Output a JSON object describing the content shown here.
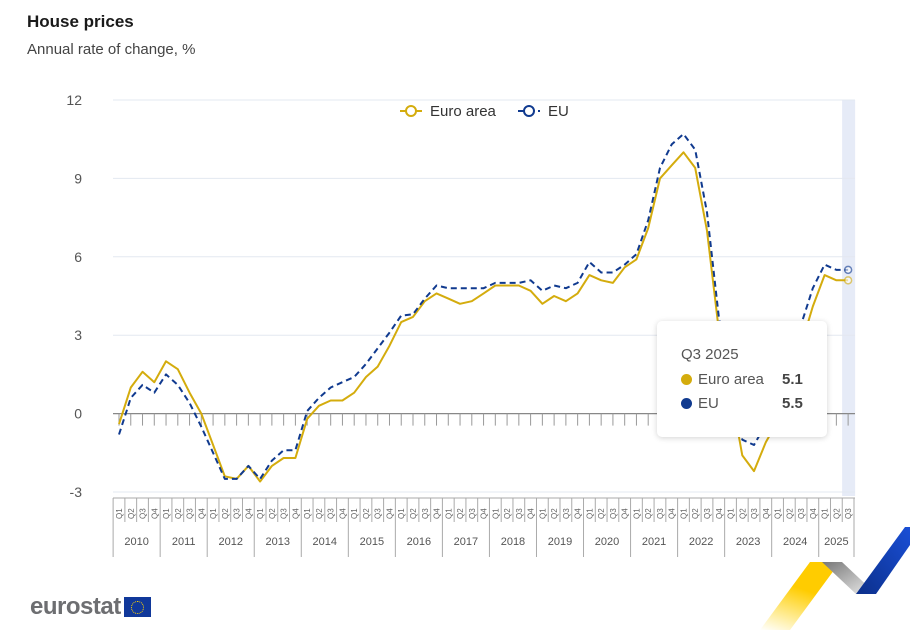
{
  "header": {
    "title": "House prices",
    "subtitle": "Annual rate of change, %"
  },
  "chart_data": {
    "type": "line",
    "title": "House prices",
    "subtitle": "Annual rate of change, %",
    "ylim": [
      -3,
      12
    ],
    "yticks": [
      -3,
      0,
      3,
      6,
      9,
      12
    ],
    "grid": true,
    "legend_placement": "top-center",
    "quarters": [
      "Q1",
      "Q2",
      "Q3",
      "Q4"
    ],
    "years": [
      "2010",
      "2011",
      "2012",
      "2013",
      "2014",
      "2015",
      "2016",
      "2017",
      "2018",
      "2019",
      "2020",
      "2021",
      "2022",
      "2023",
      "2024",
      "2025"
    ],
    "series": [
      {
        "name": "Euro area",
        "color": "#d4ac0d",
        "dash": false,
        "values": [
          -0.4,
          1.0,
          1.6,
          1.2,
          2.0,
          1.7,
          0.8,
          0.0,
          -1.2,
          -2.4,
          -2.5,
          -2.0,
          -2.6,
          -2.0,
          -1.7,
          -1.7,
          -0.2,
          0.3,
          0.5,
          0.5,
          0.8,
          1.4,
          1.8,
          2.6,
          3.5,
          3.7,
          4.3,
          4.6,
          4.4,
          4.2,
          4.3,
          4.6,
          4.9,
          4.9,
          4.9,
          4.7,
          4.2,
          4.5,
          4.3,
          4.6,
          5.3,
          5.1,
          5.0,
          5.6,
          5.9,
          7.1,
          9.0,
          9.5,
          10.0,
          9.4,
          7.0,
          3.2,
          0.9,
          -1.6,
          -2.2,
          -1.1,
          -0.3,
          1.3,
          2.6,
          4.1,
          5.3,
          5.1,
          5.1
        ]
      },
      {
        "name": "EU",
        "color": "#103a8f",
        "dash": true,
        "values": [
          -0.8,
          0.6,
          1.1,
          0.8,
          1.5,
          1.1,
          0.4,
          -0.5,
          -1.5,
          -2.5,
          -2.5,
          -2.0,
          -2.5,
          -1.8,
          -1.4,
          -1.4,
          0.1,
          0.6,
          1.0,
          1.2,
          1.4,
          1.9,
          2.5,
          3.1,
          3.75,
          3.8,
          4.4,
          4.9,
          4.8,
          4.8,
          4.8,
          4.8,
          5.0,
          5.0,
          5.0,
          5.1,
          4.7,
          4.9,
          4.8,
          5.0,
          5.8,
          5.4,
          5.4,
          5.7,
          6.1,
          7.4,
          9.4,
          10.3,
          10.7,
          10.1,
          7.7,
          3.7,
          1.3,
          -1.0,
          -1.2,
          -0.4,
          0.5,
          2.3,
          3.4,
          4.8,
          5.7,
          5.5,
          5.5
        ]
      }
    ],
    "highlight": "Q3 2025"
  },
  "tooltip": {
    "label": "Q3 2025",
    "rows": [
      {
        "name": "Euro area",
        "value": "5.1",
        "color": "#d4ac0d"
      },
      {
        "name": "EU",
        "value": "5.5",
        "color": "#103a8f"
      }
    ]
  },
  "footer": {
    "logo": "eurostat"
  }
}
